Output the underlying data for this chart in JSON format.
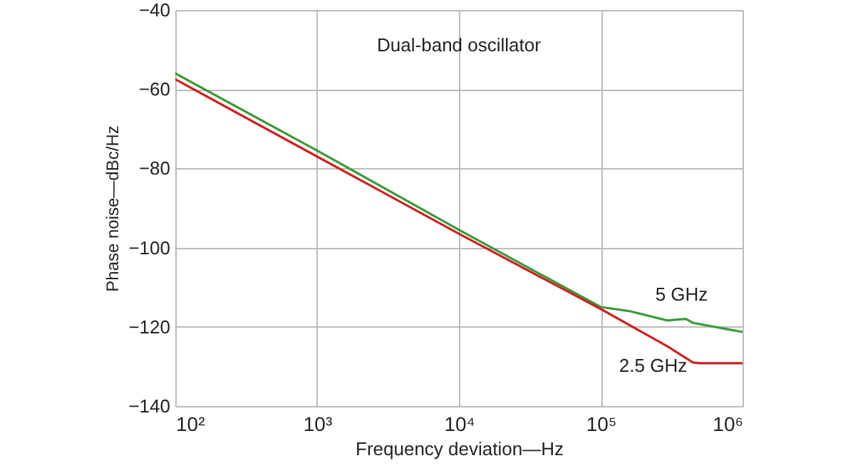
{
  "chart_data": {
    "type": "line",
    "title": "Dual-band oscillator",
    "xlabel": "Frequency deviation—Hz",
    "ylabel": "Phase noise—dBc/Hz",
    "log": "x",
    "grid": true,
    "marker": "none",
    "line_style": "solid",
    "xlim": [
      100,
      1000000
    ],
    "xticks": [
      {
        "value": 100,
        "label": "10²"
      },
      {
        "value": 1000,
        "label": "10³"
      },
      {
        "value": 10000,
        "label": "10⁴"
      },
      {
        "value": 100000,
        "label": "10⁵"
      },
      {
        "value": 1000000,
        "label": "10⁶"
      }
    ],
    "ylim": [
      -140,
      -40
    ],
    "yticks": [
      {
        "value": -140,
        "label": "−140"
      },
      {
        "value": -120,
        "label": "−120"
      },
      {
        "value": -100,
        "label": "−100"
      },
      {
        "value": -80,
        "label": "−80"
      },
      {
        "value": -60,
        "label": "−60"
      },
      {
        "value": -40,
        "label": "−40"
      }
    ],
    "series": [
      {
        "name": "5 GHz",
        "color": "#3a9a3a",
        "x": [
          100,
          1000,
          10000,
          100000,
          158000,
          295000,
          398000,
          447000,
          1000000
        ],
        "values": [
          -56,
          -75.5,
          -95.5,
          -115,
          -116,
          -118.4,
          -118,
          -119,
          -121.3
        ]
      },
      {
        "name": "2.5 GHz",
        "color": "#cc2222",
        "x": [
          100,
          1000,
          10000,
          100000,
          295000,
          447000,
          500000,
          1000000
        ],
        "values": [
          -57.5,
          -77,
          -96.5,
          -115.5,
          -124.9,
          -129,
          -129.2,
          -129.2
        ]
      }
    ]
  }
}
